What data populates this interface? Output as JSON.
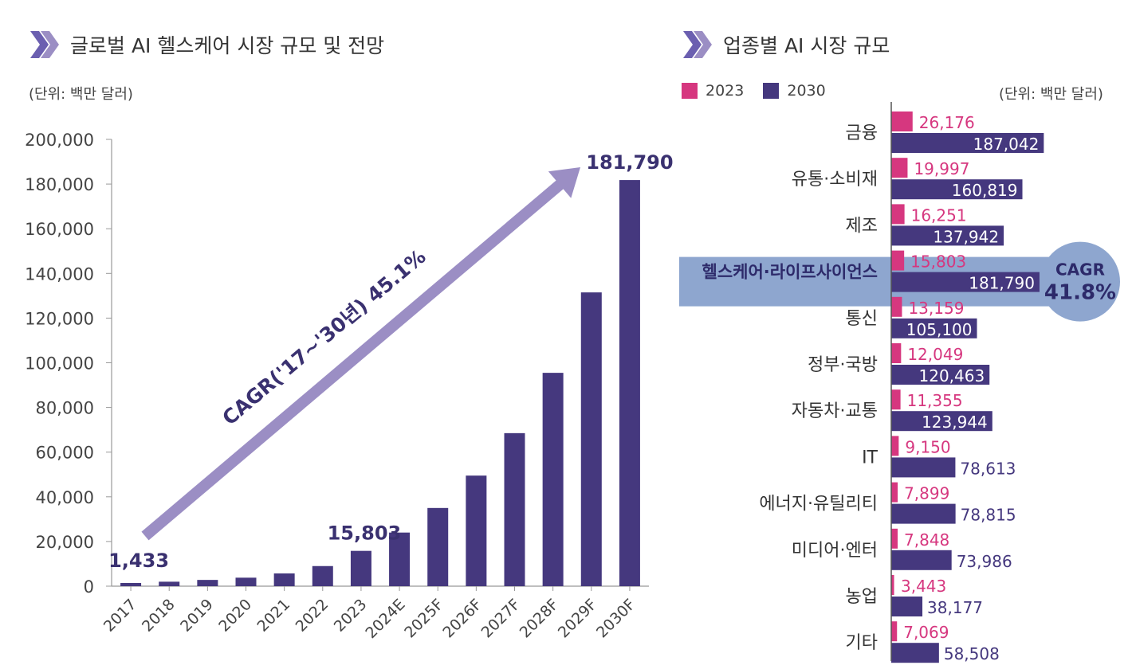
{
  "left_panel": {
    "title": "글로벌 AI 헬스케어 시장 규모 및 전망",
    "unit": "(단위: 백만 달러)",
    "arrow_label": "CAGR('17~'30년) 45.1%"
  },
  "right_panel": {
    "title": "업종별 AI 시장 규모",
    "unit": "(단위: 백만 달러)",
    "cagr_label": "CAGR",
    "cagr_value": "41.8%"
  },
  "colors": {
    "bar_2030": "#45387e",
    "bar_2023": "#d6377f",
    "arrow": "#9b8ec4",
    "highlight": "#8ea6cf",
    "highlight_text": "#2d2a6a",
    "axis": "#999999"
  },
  "chart_data": [
    {
      "type": "bar",
      "title": "글로벌 AI 헬스케어 시장 규모 및 전망",
      "categories": [
        "2017",
        "2018",
        "2019",
        "2020",
        "2021",
        "2022",
        "2023",
        "2024E",
        "2025F",
        "2026F",
        "2027F",
        "2028F",
        "2029F",
        "2030F"
      ],
      "values": [
        1433,
        2000,
        2800,
        3800,
        5700,
        9000,
        15803,
        24000,
        35000,
        49500,
        68500,
        95500,
        131500,
        181790
      ],
      "data_labels": [
        {
          "category": "2017",
          "text": "1,433"
        },
        {
          "category": "2023",
          "text": "15,803"
        },
        {
          "category": "2030F",
          "text": "181,790"
        }
      ],
      "yticks": [
        "0",
        "20,000",
        "40,000",
        "60,000",
        "80,000",
        "100,000",
        "120,000",
        "140,000",
        "160,000",
        "180,000",
        "200,000"
      ],
      "ylim": [
        0,
        200000
      ],
      "grid": false
    },
    {
      "type": "bar",
      "orientation": "horizontal",
      "title": "업종별 AI 시장 규모",
      "categories": [
        "금융",
        "유통·소비재",
        "제조",
        "헬스케어·라이프사이언스",
        "통신",
        "정부·국방",
        "자동차·교통",
        "IT",
        "에너지·유틸리티",
        "미디어·엔터",
        "농업",
        "기타"
      ],
      "highlight_category": "헬스케어·라이프사이언스",
      "series": [
        {
          "name": "2023",
          "values": [
            26176,
            19997,
            16251,
            15803,
            13159,
            12049,
            11355,
            9150,
            7899,
            7848,
            3443,
            7069
          ],
          "labels": [
            "26,176",
            "19,997",
            "16,251",
            "15,803",
            "13,159",
            "12,049",
            "11,355",
            "9,150",
            "7,899",
            "7,848",
            "3,443",
            "7,069"
          ]
        },
        {
          "name": "2030",
          "values": [
            187042,
            160819,
            137942,
            181790,
            105100,
            120463,
            123944,
            78613,
            78815,
            73986,
            38177,
            58508
          ],
          "labels": [
            "187,042",
            "160,819",
            "137,942",
            "181,790",
            "105,100",
            "120,463",
            "123,944",
            "78,613",
            "78,815",
            "73,986",
            "38,177",
            "58,508"
          ]
        }
      ],
      "legend": "top-left"
    }
  ]
}
